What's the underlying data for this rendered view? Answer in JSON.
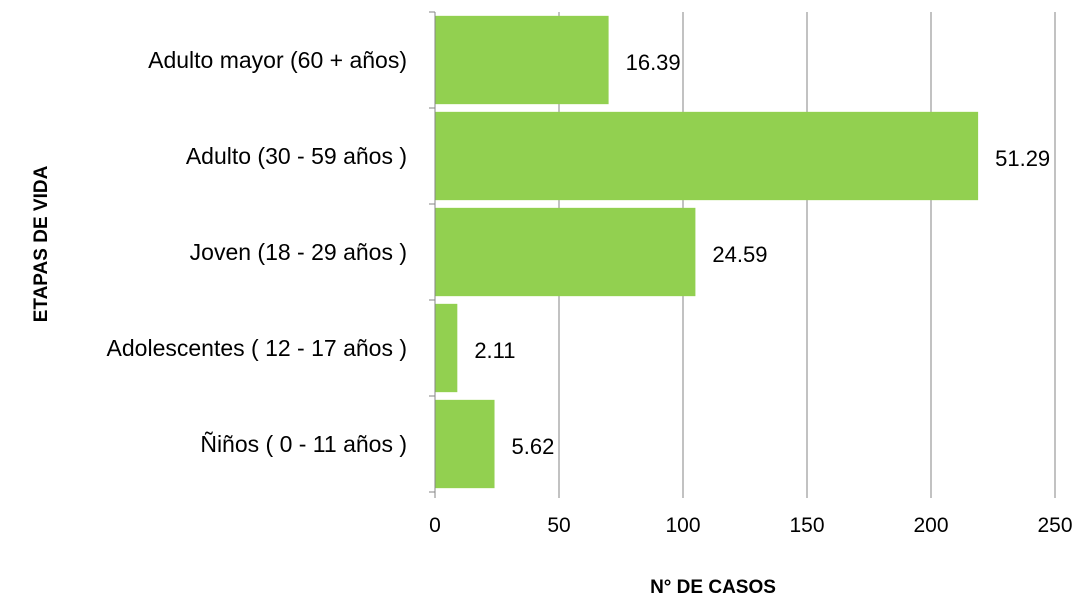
{
  "chart_data": {
    "type": "bar",
    "orientation": "horizontal",
    "categories": [
      "Adulto mayor (60 + años)",
      "Adulto (30 - 59 años )",
      "Joven (18 - 29 años )",
      "Adolescentes ( 12 - 17 años )",
      "Ñiños ( 0 - 11 años )"
    ],
    "values": [
      70,
      219,
      105,
      9,
      24
    ],
    "data_labels": [
      "16.39",
      "51.29",
      "24.59",
      "2.11",
      "5.62"
    ],
    "xlabel": "N° DE CASOS",
    "ylabel": "ETAPAS DE VIDA",
    "xlim": [
      0,
      250
    ],
    "x_ticks": [
      "0",
      "50",
      "100",
      "150",
      "200",
      "250"
    ],
    "grid": "vertical",
    "legend": "none",
    "colors": {
      "bar": "#92d050",
      "grid": "#868686",
      "axis": "#868686"
    }
  }
}
